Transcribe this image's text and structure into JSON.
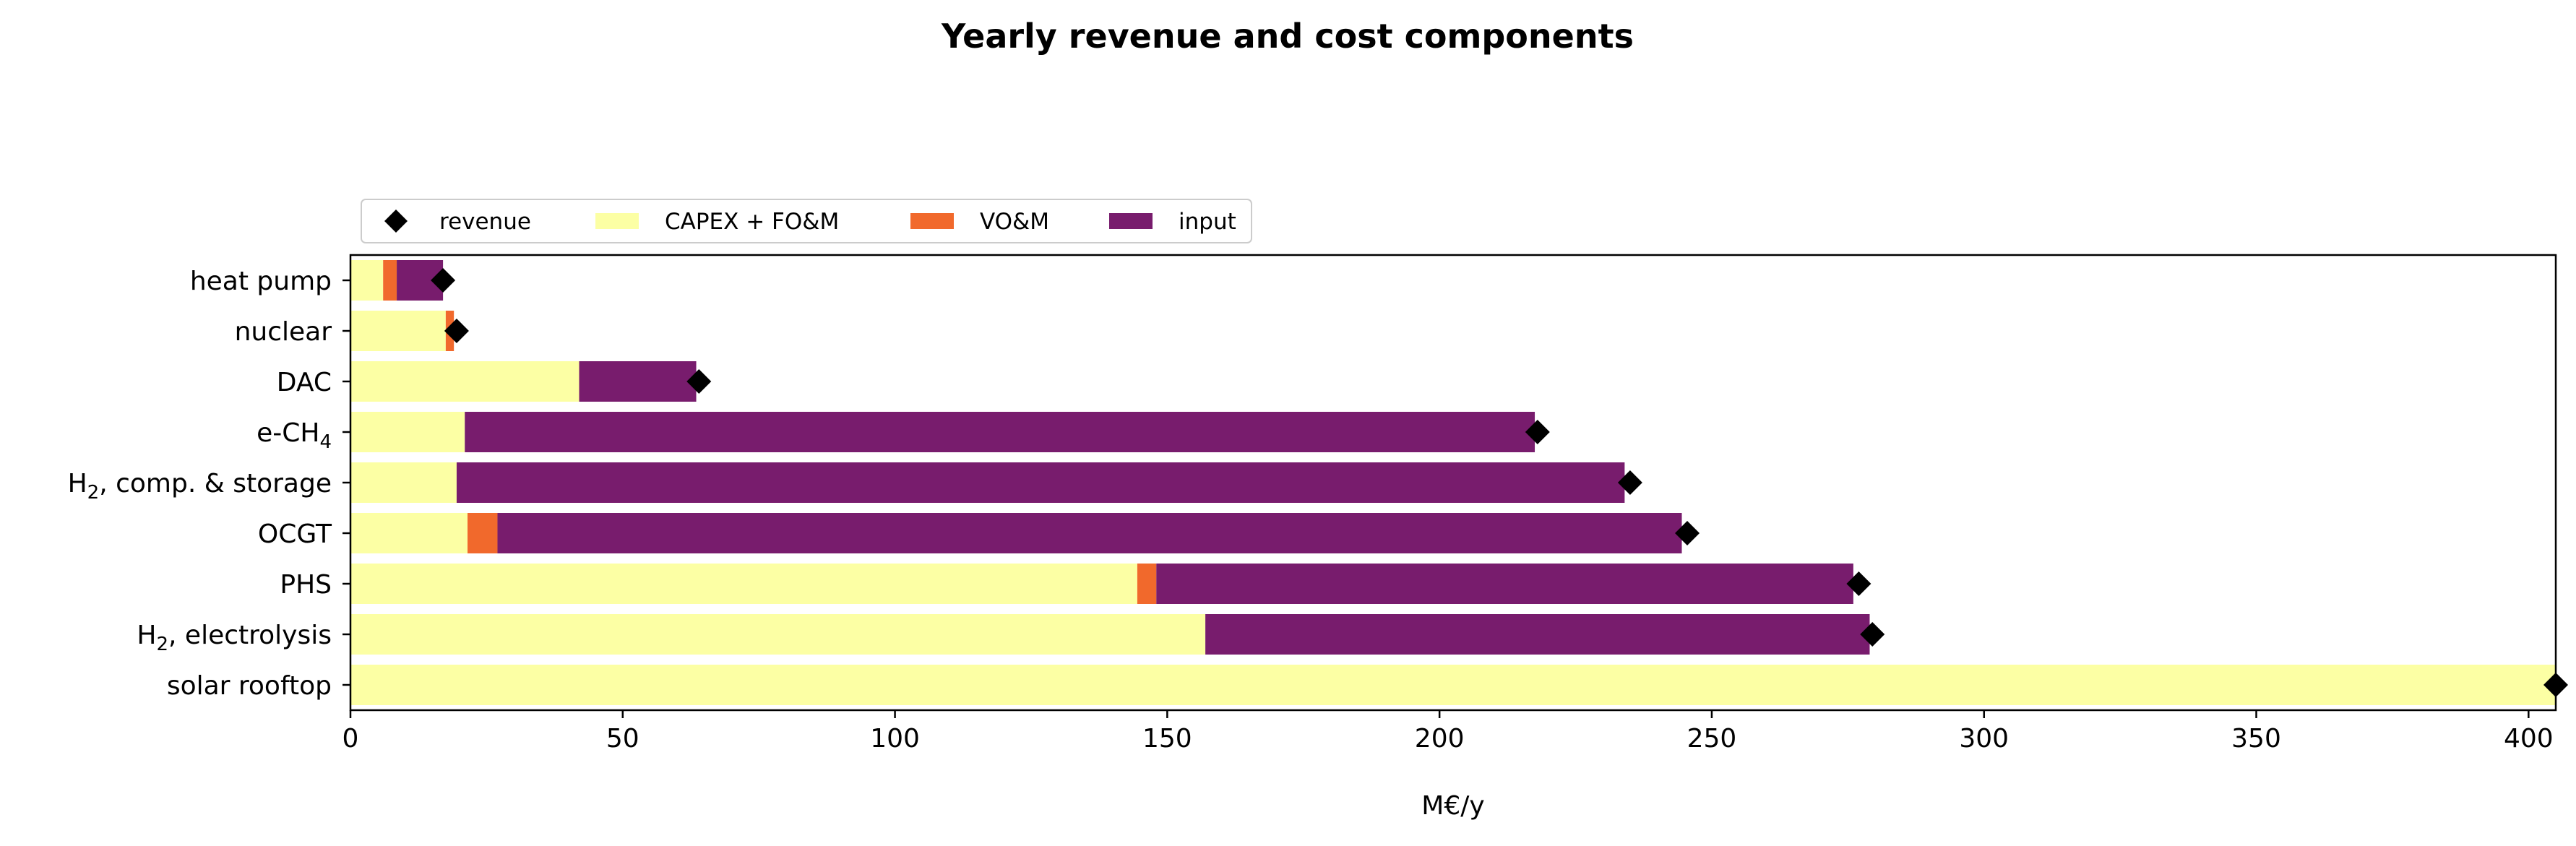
{
  "chart_data": {
    "type": "bar",
    "orientation": "horizontal",
    "stacked": true,
    "title": "Yearly revenue and cost components",
    "xlabel": "M€/y",
    "ylabel": "",
    "xlim": [
      0,
      405
    ],
    "xticks": [
      0,
      50,
      100,
      150,
      200,
      250,
      300,
      350,
      400
    ],
    "grid": false,
    "legend_position": "top-left, above plot",
    "categories": [
      {
        "name": "heat pump",
        "sub": "",
        "tail": ""
      },
      {
        "name": "nuclear",
        "sub": "",
        "tail": ""
      },
      {
        "name": "DAC",
        "sub": "",
        "tail": ""
      },
      {
        "name": "e-CH",
        "sub": "4",
        "tail": ""
      },
      {
        "name": "H",
        "sub": "2",
        "tail": ", comp. & storage"
      },
      {
        "name": "OCGT",
        "sub": "",
        "tail": ""
      },
      {
        "name": "PHS",
        "sub": "",
        "tail": ""
      },
      {
        "name": "H",
        "sub": "2",
        "tail": ", electrolysis"
      },
      {
        "name": "solar rooftop",
        "sub": "",
        "tail": ""
      }
    ],
    "series": [
      {
        "name": "CAPEX + FO&M",
        "color": "#fcffa4",
        "values": [
          6,
          17.5,
          42,
          21,
          19.5,
          21.5,
          144.5,
          157,
          405
        ]
      },
      {
        "name": "VO&M",
        "color": "#f1692c",
        "values": [
          2.5,
          1.5,
          0,
          0,
          0,
          5.5,
          3.5,
          0,
          0
        ]
      },
      {
        "name": "input",
        "color": "#781c6d",
        "values": [
          8.5,
          0,
          21.5,
          196.5,
          214.5,
          217.5,
          128,
          122,
          0
        ]
      }
    ],
    "markers": {
      "name": "revenue",
      "color": "#000000",
      "shape": "diamond",
      "values": [
        17,
        19.5,
        64,
        218,
        235,
        245.5,
        277,
        279.5,
        405
      ]
    },
    "legend": [
      "revenue",
      "CAPEX + FO&M",
      "VO&M",
      "input"
    ]
  }
}
